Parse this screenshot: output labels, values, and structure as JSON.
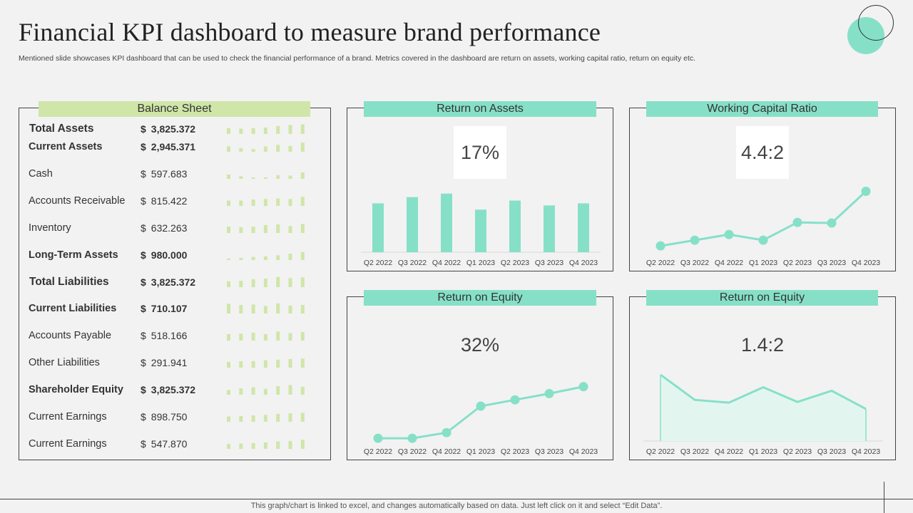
{
  "page": {
    "title": "Financial KPI dashboard to measure brand performance",
    "subtitle": "Mentioned slide showcases KPI dashboard that can be used to check the financial performance of a brand. Metrics covered in the dashboard are return on assets, working capital ratio, return on equity etc.",
    "footer": "This graph/chart is linked to excel,  and changes automatically based on data. Just left click on it and select “Edit Data”."
  },
  "colors": {
    "teal": "#86e0c8",
    "green": "#cfe6a8",
    "bar_green": "#cfe6a8"
  },
  "balance_sheet": {
    "title": "Balance Sheet",
    "rows": [
      {
        "label": "Total Assets",
        "currency": "$",
        "value": "3,825.372",
        "bold": true,
        "spark": [
          0.55,
          0.5,
          0.55,
          0.6,
          0.75,
          0.85,
          0.9,
          0.95
        ]
      },
      {
        "label": "Current Assets",
        "currency": "$",
        "value": "2,945.371",
        "bold": true,
        "spark": [
          0.5,
          0.35,
          0.25,
          0.5,
          0.65,
          0.55,
          0.85,
          0.95
        ]
      },
      {
        "label": "Cash",
        "currency": "$",
        "value": "597.683",
        "bold": false,
        "spark": [
          0.4,
          0.25,
          0.1,
          0.12,
          0.35,
          0.3,
          0.6,
          0.5
        ]
      },
      {
        "label": "Accounts Receivable",
        "currency": "$",
        "value": "815.422",
        "bold": false,
        "spark": [
          0.5,
          0.5,
          0.6,
          0.65,
          0.7,
          0.65,
          0.85,
          0.9
        ]
      },
      {
        "label": "Inventory",
        "currency": "$",
        "value": "632.263",
        "bold": false,
        "spark": [
          0.6,
          0.55,
          0.6,
          0.75,
          0.8,
          0.65,
          0.85,
          0.95
        ]
      },
      {
        "label": "Long-Term Assets",
        "currency": "$",
        "value": "980.000",
        "bold": true,
        "spark": [
          0.15,
          0.2,
          0.3,
          0.35,
          0.45,
          0.6,
          0.75,
          0.95
        ]
      },
      {
        "label": "Total Liabilities",
        "currency": "$",
        "value": "3,825.372",
        "bold": true,
        "spark": [
          0.55,
          0.6,
          0.75,
          0.8,
          0.95,
          0.85,
          0.9,
          0.95
        ]
      },
      {
        "label": "Current Liabilities",
        "currency": "$",
        "value": "710.107",
        "bold": true,
        "spark": [
          0.9,
          0.8,
          0.85,
          0.7,
          0.95,
          0.75,
          0.8,
          0.9
        ]
      },
      {
        "label": "Accounts Payable",
        "currency": "$",
        "value": "518.166",
        "bold": false,
        "spark": [
          0.6,
          0.65,
          0.75,
          0.6,
          0.85,
          0.7,
          0.8,
          0.9
        ]
      },
      {
        "label": "Other Liabilities",
        "currency": "$",
        "value": "291.941",
        "bold": false,
        "spark": [
          0.55,
          0.6,
          0.6,
          0.7,
          0.75,
          0.8,
          0.85,
          0.95
        ]
      },
      {
        "label": "Shareholder Equity",
        "currency": "$",
        "value": "3,825.372",
        "bold": true,
        "spark": [
          0.45,
          0.6,
          0.7,
          0.55,
          0.8,
          0.9,
          0.75,
          0.95
        ]
      },
      {
        "label": "Current Earnings",
        "currency": "$",
        "value": "898.750",
        "bold": false,
        "spark": [
          0.5,
          0.55,
          0.6,
          0.65,
          0.75,
          0.8,
          0.85,
          0.95
        ]
      },
      {
        "label": "Current Earnings",
        "currency": "$",
        "value": "547.870",
        "bold": false,
        "spark": [
          0.45,
          0.5,
          0.55,
          0.6,
          0.7,
          0.75,
          0.85,
          0.9
        ]
      }
    ]
  },
  "roa": {
    "title": "Return on Assets",
    "kpi": "17%"
  },
  "wcr": {
    "title": "Working Capital Ratio",
    "kpi": "4.4:2"
  },
  "roe": {
    "title": "Return on Equity",
    "kpi": "32%"
  },
  "roe2": {
    "title": "Return on Equity",
    "kpi": "1.4:2"
  },
  "chart_data": [
    {
      "id": "roa",
      "type": "bar",
      "title": "Return on Assets",
      "categories": [
        "Q2 2022",
        "Q3 2022",
        "Q4 2022",
        "Q1 2023",
        "Q2 2023",
        "Q3 2023",
        "Q4 2023"
      ],
      "values": [
        70,
        79,
        84,
        61,
        74,
        67,
        70
      ],
      "ylim": [
        0,
        100
      ]
    },
    {
      "id": "wcr",
      "type": "line",
      "title": "Working Capital Ratio",
      "categories": [
        "Q2 2022",
        "Q3 2022",
        "Q4 2022",
        "Q1 2023",
        "Q2 2023",
        "Q3 2023",
        "Q4 2023"
      ],
      "values": [
        10,
        19,
        28,
        19,
        47,
        46,
        96
      ],
      "ylim": [
        0,
        110
      ]
    },
    {
      "id": "roe",
      "type": "line",
      "title": "Return on Equity",
      "categories": [
        "Q2 2022",
        "Q3 2022",
        "Q4 2022",
        "Q1 2023",
        "Q2 2023",
        "Q3 2023",
        "Q4 2023"
      ],
      "values": [
        4,
        4,
        12,
        50,
        59,
        68,
        78
      ],
      "ylim": [
        0,
        100
      ]
    },
    {
      "id": "roe2",
      "type": "area",
      "title": "Return on Equity",
      "categories": [
        "Q2 2022",
        "Q3 2022",
        "Q4 2022",
        "Q1 2023",
        "Q2 2023",
        "Q3 2023",
        "Q4 2023"
      ],
      "values": [
        95,
        59,
        55,
        77,
        56,
        72,
        46
      ],
      "ylim": [
        0,
        100
      ]
    }
  ]
}
